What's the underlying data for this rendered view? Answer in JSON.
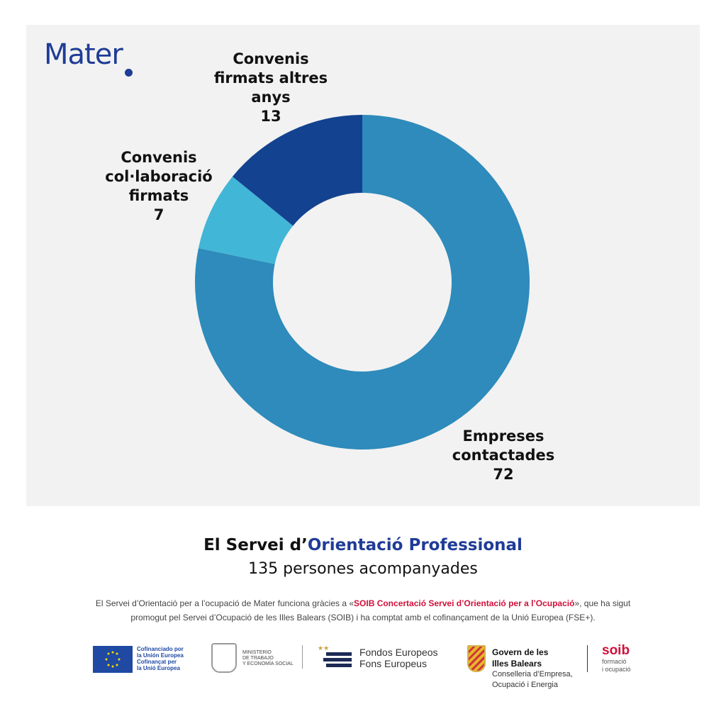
{
  "logo": "Mater",
  "chart_data": {
    "type": "pie",
    "donut": true,
    "categories": [
      "Empreses contactades",
      "Convenis col·laboració firmats",
      "Convenis firmats altres anys"
    ],
    "values": [
      72,
      7,
      13
    ],
    "colors": [
      "#2e8bbb",
      "#42b6d6",
      "#134290"
    ],
    "labels": [
      {
        "line1": "Empreses",
        "line2": "contactades",
        "line3": "",
        "value": "72"
      },
      {
        "line1": "Convenis",
        "line2": "col·laboració",
        "line3": "firmats",
        "value": "7"
      },
      {
        "line1": "Convenis",
        "line2": "firmats altres",
        "line3": "anys",
        "value": "13"
      }
    ]
  },
  "title": {
    "prefix": "El Servei d’",
    "highlight": "Orientació Professional"
  },
  "subtitle": "135 persones acompanyades",
  "note": {
    "part1": "El Servei d’Orientació per a l’ocupació de Mater funciona gràcies a «",
    "highlight": "SOIB Concertació Servei d’Orientació per a l’Ocupació",
    "part2": "», que ha sigut promogut pel Servei d’Ocupació de les Illes Balears (SOIB) i ha comptat amb el cofinançament de la Unió Europea (FSE+)."
  },
  "footer": {
    "eu1": "Cofinanciado por",
    "eu2": "la Unión Europea",
    "eu3": "Cofinançat per",
    "eu4": "la Unió Europea",
    "min1": "MINISTERIO",
    "min2": "DE TRABAJO",
    "min3": "Y ECONOMÍA SOCIAL",
    "fe1": "Fondos Europeos",
    "fe2": "Fons Europeus",
    "gov1": "Govern de les",
    "gov2": "Illes Balears",
    "gov3": "Conselleria d’Empresa,",
    "gov4": "Ocupació i Energia",
    "soib": "soib",
    "soib2": "formació",
    "soib3": "i ocupació"
  }
}
